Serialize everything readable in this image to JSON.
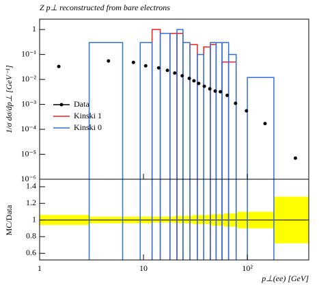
{
  "chart_data": {
    "type": "scatter",
    "title": "Z p⊥ reconstructed from bare electrons",
    "y_label": "1/σ dσ/dp⊥ [GeV⁻¹]",
    "ratio_label": "MC/Data",
    "x_label": "p⊥(ee) [GeV]",
    "log_x": true,
    "log_y": true,
    "xlim": [
      1,
      390
    ],
    "xticks": [
      1,
      10,
      {
        "value": 100,
        "label": "10²"
      }
    ],
    "ylim": [
      1e-06,
      2.6
    ],
    "yticks": [
      {
        "value": 1e-06,
        "label": "10⁻⁶"
      },
      {
        "value": 1e-05,
        "label": "10⁻⁵"
      },
      {
        "value": 0.0001,
        "label": "10⁻⁴"
      },
      {
        "value": 0.001,
        "label": "10⁻³"
      },
      {
        "value": 0.01,
        "label": "10⁻²"
      },
      {
        "value": 0.1,
        "label": "10⁻¹"
      },
      1
    ],
    "ratio_ylim": [
      0.52,
      1.49
    ],
    "ratio_yticks": [
      0.6,
      0.8,
      1,
      1.2,
      1.4
    ],
    "data": {
      "name": "Data",
      "color": "#000000",
      "x": [
        1.53,
        4.6,
        8.0,
        10.5,
        14,
        17,
        20,
        23.6,
        27.6,
        30.6,
        34,
        38.5,
        43.5,
        49,
        55,
        64,
        77,
        98,
        148,
        290
      ],
      "values": [
        0.033,
        0.055,
        0.048,
        0.035,
        0.029,
        0.023,
        0.018,
        0.014,
        0.011,
        0.0088,
        0.0069,
        0.0053,
        0.0042,
        0.0034,
        0.0032,
        0.0023,
        0.0011,
        0.00055,
        0.00017,
        7e-06
      ]
    },
    "bins": [
      1,
      3,
      6.3,
      9.3,
      12.1,
      14.5,
      18,
      21,
      24,
      28,
      33,
      38,
      44,
      50,
      57,
      66,
      78,
      100,
      180,
      390
    ],
    "series": [
      {
        "name": "Kinski 1",
        "color": "#ee1c1c",
        "values": [
          0,
          0,
          0,
          0,
          1.0,
          0,
          0.7,
          0.7,
          0,
          0.25,
          0,
          0.2,
          0.25,
          0,
          0.05,
          0.05,
          0,
          0,
          0
        ]
      },
      {
        "name": "Kinski 0",
        "color": "#2f6fe0",
        "values": [
          0,
          0.3,
          0,
          0.3,
          0,
          0.7,
          0,
          1.0,
          0.3,
          0,
          0.1,
          0,
          0.3,
          0.3,
          0.3,
          0.1,
          0,
          0.012,
          0
        ]
      }
    ],
    "ratio_band": {
      "color": "#ffff00",
      "bins": [
        1,
        3,
        6.3,
        12,
        20,
        30,
        45,
        60,
        80,
        180,
        390
      ],
      "lo": [
        0.94,
        0.96,
        0.96,
        0.97,
        0.96,
        0.95,
        0.93,
        0.92,
        0.9,
        0.72
      ],
      "hi": [
        1.06,
        1.04,
        1.04,
        1.04,
        1.05,
        1.06,
        1.07,
        1.08,
        1.1,
        1.28
      ]
    }
  }
}
